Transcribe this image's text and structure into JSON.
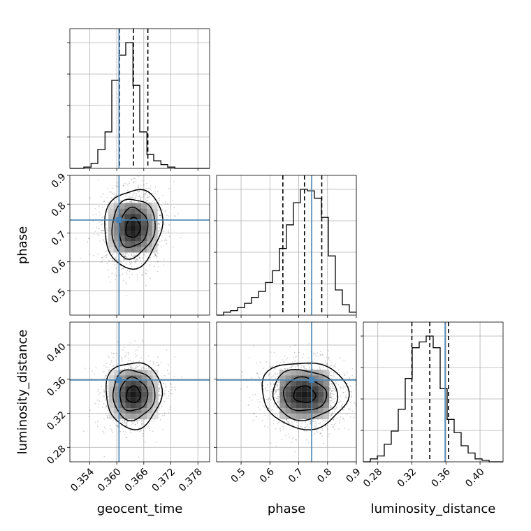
{
  "chart_data": {
    "type": "corner",
    "parameters": [
      "geocent_time",
      "phase",
      "luminosity_distance"
    ],
    "axis_labels": {
      "x": [
        "geocent_time",
        "phase",
        "luminosity_distance"
      ],
      "y": [
        "phase",
        "luminosity_distance"
      ]
    },
    "ranges": {
      "geocent_time": [
        0.3496,
        0.3806
      ],
      "phase": [
        0.415,
        0.9
      ],
      "luminosity_distance": [
        0.263,
        0.427
      ]
    },
    "ticks": {
      "geocent_time": [
        0.354,
        0.36,
        0.366,
        0.372,
        0.378
      ],
      "phase": [
        0.5,
        0.6,
        0.7,
        0.8,
        0.9
      ],
      "luminosity_distance": [
        0.28,
        0.32,
        0.36,
        0.4
      ]
    },
    "tick_labels": {
      "geocent_time": [
        "0.354",
        "0.360",
        "0.366",
        "0.372",
        "0.378"
      ],
      "phase": [
        "0.5",
        "0.6",
        "0.7",
        "0.8",
        "0.9"
      ],
      "luminosity_distance": [
        "0.28",
        "0.32",
        "0.36",
        "0.40"
      ]
    },
    "truths": {
      "geocent_time": 0.3605,
      "phase": 0.745,
      "luminosity_distance": 0.359
    },
    "quantiles": {
      "geocent_time": [
        0.3606,
        0.3637,
        0.3669
      ],
      "phase": [
        0.645,
        0.72,
        0.78
      ],
      "luminosity_distance": [
        0.32,
        0.341,
        0.363
      ]
    },
    "histograms": {
      "geocent_time": {
        "edges": [
          0.3496,
          0.3511,
          0.3527,
          0.3543,
          0.3558,
          0.3574,
          0.3589,
          0.3605,
          0.362,
          0.3636,
          0.3651,
          0.3667,
          0.3682,
          0.3698,
          0.3713,
          0.3729,
          0.3744,
          0.376,
          0.3775,
          0.3791,
          0.3806
        ],
        "counts": [
          0,
          0,
          1,
          4,
          15,
          29,
          70,
          90,
          100,
          66,
          29,
          11,
          6,
          3,
          1,
          0,
          0,
          0,
          0,
          0
        ]
      },
      "phase": {
        "edges": [
          0.415,
          0.4393,
          0.4635,
          0.4877,
          0.512,
          0.5363,
          0.5605,
          0.5848,
          0.609,
          0.6332,
          0.6575,
          0.6817,
          0.706,
          0.7303,
          0.7545,
          0.7788,
          0.803,
          0.8273,
          0.8515,
          0.8758,
          0.9
        ],
        "counts": [
          0,
          2,
          3,
          5,
          8,
          12,
          16,
          22,
          30,
          45,
          61,
          76,
          85,
          84,
          79,
          66,
          40,
          17,
          7,
          2
        ]
      },
      "luminosity_distance": {
        "edges": [
          0.263,
          0.2712,
          0.2794,
          0.2876,
          0.2958,
          0.304,
          0.3122,
          0.3204,
          0.3286,
          0.3368,
          0.345,
          0.3532,
          0.3614,
          0.3696,
          0.3778,
          0.386,
          0.3942,
          0.4024,
          0.4106,
          0.4188,
          0.427
        ],
        "counts": [
          0,
          2,
          4,
          12,
          21,
          36,
          57,
          78,
          82,
          86,
          78,
          50,
          29,
          20,
          11,
          6,
          2,
          1,
          0,
          0
        ]
      }
    },
    "joint": [
      {
        "x": "geocent_time",
        "y": "phase",
        "center": [
          0.3636,
          0.718
        ],
        "sigma": [
          0.0032,
          0.068
        ],
        "rho": -0.1
      },
      {
        "x": "geocent_time",
        "y": "luminosity_distance",
        "center": [
          0.3637,
          0.342
        ],
        "sigma": [
          0.0031,
          0.0195
        ],
        "rho": 0.0
      },
      {
        "x": "phase",
        "y": "luminosity_distance",
        "center": [
          0.72,
          0.342
        ],
        "sigma": [
          0.075,
          0.0195
        ],
        "rho": 0.05
      }
    ],
    "contour_levels_sigma": [
      0.5,
      1.0,
      1.5,
      2.0
    ],
    "colors": {
      "truth": "#4682b4",
      "hist": "#000000",
      "grid": "#b0b0b0"
    },
    "grid": true
  }
}
